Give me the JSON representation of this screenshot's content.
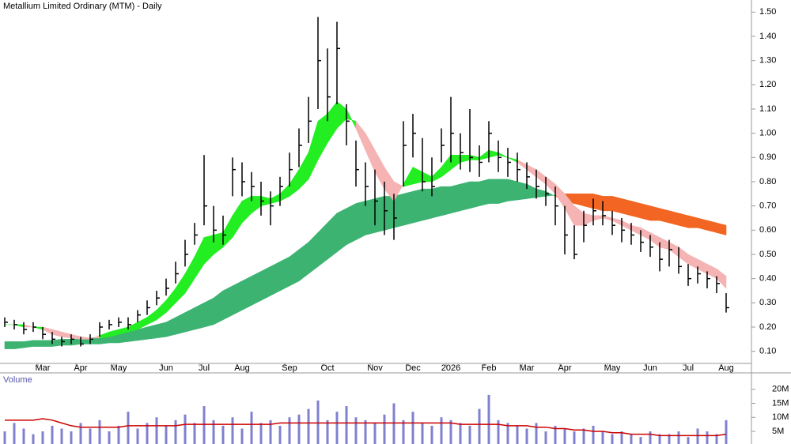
{
  "chart_data": {
    "type": "ohlc",
    "title": "Metallium Limited Ordinary (MTM) - Daily",
    "categories": [
      null,
      null,
      null,
      null,
      "Mar",
      null,
      null,
      null,
      "Apr",
      null,
      null,
      null,
      "May",
      null,
      null,
      null,
      null,
      "Jun",
      null,
      null,
      null,
      "Jul",
      null,
      null,
      null,
      "Aug",
      null,
      null,
      null,
      null,
      "Sep",
      null,
      null,
      null,
      "Oct",
      null,
      null,
      null,
      null,
      "Nov",
      null,
      null,
      null,
      "Dec",
      null,
      null,
      null,
      "2026",
      null,
      null,
      null,
      "Feb",
      null,
      null,
      null,
      "Mar",
      null,
      null,
      null,
      "Apr",
      null,
      null,
      null,
      null,
      "May",
      null,
      null,
      null,
      "Jun",
      null,
      null,
      null,
      "Jul",
      null,
      null,
      null,
      "Aug"
    ],
    "high": [
      0.24,
      0.23,
      0.22,
      0.22,
      0.2,
      0.18,
      0.16,
      0.17,
      0.16,
      0.17,
      0.22,
      0.23,
      0.24,
      0.24,
      0.27,
      0.31,
      0.35,
      0.4,
      0.47,
      0.56,
      0.63,
      0.91,
      0.7,
      0.66,
      0.9,
      0.88,
      0.84,
      0.8,
      0.76,
      0.82,
      0.92,
      1.02,
      1.15,
      1.48,
      1.35,
      1.46,
      1.12,
      0.97,
      0.88,
      0.85,
      0.8,
      0.75,
      1.05,
      1.08,
      0.98,
      0.9,
      1.02,
      1.15,
      1.0,
      1.1,
      0.95,
      1.05,
      0.97,
      0.94,
      0.92,
      0.88,
      0.85,
      0.82,
      0.78,
      0.7,
      0.62,
      0.68,
      0.73,
      0.72,
      0.68,
      0.65,
      0.63,
      0.6,
      0.58,
      0.55,
      0.56,
      0.53,
      0.46,
      0.45,
      0.43,
      0.41,
      0.34
    ],
    "low": [
      0.2,
      0.19,
      0.17,
      0.18,
      0.15,
      0.13,
      0.12,
      0.13,
      0.12,
      0.13,
      0.16,
      0.19,
      0.2,
      0.19,
      0.22,
      0.25,
      0.29,
      0.33,
      0.38,
      0.45,
      0.54,
      0.62,
      0.55,
      0.54,
      0.74,
      0.74,
      0.72,
      0.66,
      0.62,
      0.7,
      0.78,
      0.86,
      0.96,
      1.1,
      1.05,
      1.12,
      0.95,
      0.78,
      0.7,
      0.62,
      0.58,
      0.56,
      0.78,
      0.9,
      0.76,
      0.74,
      0.88,
      0.88,
      0.85,
      0.84,
      0.82,
      0.88,
      0.84,
      0.82,
      0.8,
      0.77,
      0.73,
      0.7,
      0.62,
      0.5,
      0.48,
      0.55,
      0.62,
      0.62,
      0.58,
      0.55,
      0.54,
      0.51,
      0.49,
      0.43,
      0.45,
      0.42,
      0.37,
      0.38,
      0.36,
      0.34,
      0.26
    ],
    "close": [
      0.22,
      0.21,
      0.19,
      0.2,
      0.17,
      0.15,
      0.14,
      0.15,
      0.13,
      0.15,
      0.2,
      0.21,
      0.22,
      0.21,
      0.25,
      0.28,
      0.32,
      0.36,
      0.42,
      0.5,
      0.58,
      0.7,
      0.6,
      0.58,
      0.85,
      0.8,
      0.78,
      0.72,
      0.7,
      0.78,
      0.85,
      0.95,
      1.05,
      1.3,
      1.15,
      1.35,
      1.05,
      0.85,
      0.78,
      0.72,
      0.68,
      0.65,
      0.95,
      1.0,
      0.8,
      0.78,
      0.95,
      1.0,
      0.92,
      0.9,
      0.88,
      1.0,
      0.9,
      0.88,
      0.85,
      0.82,
      0.78,
      0.75,
      0.7,
      0.58,
      0.5,
      0.62,
      0.68,
      0.66,
      0.62,
      0.6,
      0.58,
      0.55,
      0.53,
      0.48,
      0.52,
      0.45,
      0.4,
      0.42,
      0.4,
      0.38,
      0.28
    ],
    "color": "#000000",
    "ylim": [
      0.05,
      1.55
    ],
    "yticks": [
      {
        "value": 0.1,
        "label": "0.10"
      },
      {
        "value": 0.2,
        "label": "0.20"
      },
      {
        "value": 0.3,
        "label": "0.30"
      },
      {
        "value": 0.4,
        "label": "0.40"
      },
      {
        "value": 0.5,
        "label": "0.50"
      },
      {
        "value": 0.6,
        "label": "0.60"
      },
      {
        "value": 0.7,
        "label": "0.70"
      },
      {
        "value": 0.8,
        "label": "0.80"
      },
      {
        "value": 0.9,
        "label": "0.90"
      },
      {
        "value": 1.0,
        "label": "1.00"
      },
      {
        "value": 1.1,
        "label": "1.10"
      },
      {
        "value": 1.2,
        "label": "1.20"
      },
      {
        "value": 1.3,
        "label": "1.30"
      },
      {
        "value": 1.4,
        "label": "1.40"
      },
      {
        "value": 1.5,
        "label": "1.50"
      }
    ],
    "ribbons": [
      {
        "fast": [
          0.14,
          0.14,
          0.14,
          0.145,
          0.145,
          0.145,
          0.15,
          0.15,
          0.15,
          0.155,
          0.16,
          0.165,
          0.17,
          0.18,
          0.19,
          0.2,
          0.21,
          0.22,
          0.24,
          0.26,
          0.28,
          0.3,
          0.32,
          0.35,
          0.37,
          0.39,
          0.41,
          0.43,
          0.45,
          0.47,
          0.49,
          0.52,
          0.55,
          0.59,
          0.63,
          0.67,
          0.69,
          0.71,
          0.72,
          0.73,
          0.74,
          0.74,
          0.75,
          0.76,
          0.77,
          0.77,
          0.78,
          0.78,
          0.79,
          0.8,
          0.8,
          0.81,
          0.81,
          0.81,
          0.8,
          0.79,
          0.77,
          0.76,
          0.74,
          0.72,
          0.71,
          0.7,
          0.69,
          0.68,
          0.68,
          0.67,
          0.66,
          0.65,
          0.64,
          0.64,
          0.63,
          0.62,
          0.61,
          0.61,
          0.6,
          0.59,
          0.58
        ],
        "slow": [
          0.11,
          0.11,
          0.115,
          0.12,
          0.12,
          0.12,
          0.125,
          0.125,
          0.13,
          0.13,
          0.13,
          0.135,
          0.135,
          0.14,
          0.145,
          0.15,
          0.155,
          0.16,
          0.17,
          0.18,
          0.19,
          0.2,
          0.21,
          0.23,
          0.25,
          0.27,
          0.29,
          0.31,
          0.33,
          0.35,
          0.37,
          0.39,
          0.42,
          0.45,
          0.48,
          0.51,
          0.54,
          0.56,
          0.58,
          0.59,
          0.6,
          0.61,
          0.62,
          0.63,
          0.64,
          0.65,
          0.66,
          0.67,
          0.68,
          0.69,
          0.7,
          0.71,
          0.71,
          0.72,
          0.725,
          0.73,
          0.735,
          0.74,
          0.745,
          0.75,
          0.75,
          0.75,
          0.75,
          0.74,
          0.74,
          0.73,
          0.72,
          0.71,
          0.7,
          0.69,
          0.68,
          0.67,
          0.66,
          0.65,
          0.64,
          0.63,
          0.62
        ],
        "up_color": "#3cb371",
        "down_color": "#f26522"
      },
      {
        "fast": [
          0.21,
          0.21,
          0.2,
          0.2,
          0.19,
          0.17,
          0.16,
          0.155,
          0.15,
          0.15,
          0.165,
          0.18,
          0.19,
          0.2,
          0.22,
          0.24,
          0.27,
          0.31,
          0.36,
          0.42,
          0.49,
          0.57,
          0.58,
          0.59,
          0.66,
          0.72,
          0.74,
          0.74,
          0.73,
          0.75,
          0.79,
          0.85,
          0.92,
          1.05,
          1.08,
          1.13,
          1.1,
          1.02,
          0.93,
          0.84,
          0.77,
          0.72,
          0.79,
          0.86,
          0.84,
          0.82,
          0.86,
          0.91,
          0.91,
          0.91,
          0.9,
          0.93,
          0.92,
          0.9,
          0.88,
          0.85,
          0.82,
          0.79,
          0.75,
          0.69,
          0.62,
          0.62,
          0.64,
          0.65,
          0.64,
          0.62,
          0.6,
          0.58,
          0.56,
          0.53,
          0.52,
          0.49,
          0.46,
          0.44,
          0.42,
          0.4,
          0.36
        ],
        "slow": [
          0.21,
          0.21,
          0.21,
          0.2,
          0.2,
          0.19,
          0.18,
          0.17,
          0.16,
          0.155,
          0.155,
          0.16,
          0.17,
          0.18,
          0.19,
          0.21,
          0.23,
          0.26,
          0.3,
          0.34,
          0.4,
          0.46,
          0.5,
          0.53,
          0.57,
          0.63,
          0.67,
          0.7,
          0.71,
          0.72,
          0.74,
          0.77,
          0.81,
          0.89,
          0.96,
          1.02,
          1.06,
          1.05,
          1.0,
          0.93,
          0.86,
          0.8,
          0.78,
          0.79,
          0.8,
          0.8,
          0.82,
          0.85,
          0.88,
          0.89,
          0.89,
          0.9,
          0.91,
          0.9,
          0.89,
          0.87,
          0.85,
          0.82,
          0.79,
          0.75,
          0.7,
          0.67,
          0.66,
          0.66,
          0.65,
          0.64,
          0.62,
          0.61,
          0.59,
          0.57,
          0.55,
          0.53,
          0.5,
          0.48,
          0.46,
          0.44,
          0.41
        ],
        "up_color": "#22ee22",
        "down_color": "#f5b3b3"
      }
    ],
    "volume": {
      "title": "Volume",
      "color": "#8080d0",
      "ma_color": "#cc0000",
      "values": [
        5,
        8,
        6,
        4,
        5,
        7,
        6,
        5,
        8,
        6,
        9,
        5,
        7,
        12,
        6,
        8,
        10,
        7,
        9,
        11,
        8,
        14,
        9,
        7,
        10,
        6,
        12,
        8,
        9,
        7,
        10,
        11,
        13,
        16,
        9,
        12,
        14,
        10,
        9,
        8,
        11,
        15,
        9,
        12,
        8,
        7,
        10,
        9,
        8,
        7,
        13,
        18,
        9,
        8,
        7,
        6,
        8,
        5,
        7,
        6,
        5,
        6,
        7,
        5,
        4,
        5,
        4,
        3,
        5,
        4,
        4,
        5,
        3,
        6,
        5,
        4,
        9
      ],
      "ma": [
        9,
        9,
        9,
        9,
        9.5,
        9,
        8,
        7,
        6.5,
        6.5,
        6.5,
        6.5,
        6.5,
        7,
        7,
        7,
        7,
        7,
        7,
        7.5,
        7.5,
        7.5,
        7.5,
        7.5,
        7.5,
        7.5,
        7.5,
        7.5,
        7.5,
        8,
        8,
        8,
        8,
        8,
        8,
        8,
        8,
        8,
        8,
        8,
        8,
        8,
        8,
        8,
        8,
        8,
        8,
        8,
        7.5,
        7.5,
        7.5,
        7.5,
        7.5,
        7,
        7,
        7,
        6.5,
        6.5,
        6,
        6,
        5.5,
        5.5,
        5,
        5,
        4.5,
        4.5,
        4,
        4,
        4,
        3.5,
        3.5,
        3.5,
        3.5,
        3.5,
        3.5,
        3.5,
        4
      ],
      "ylim": [
        0.5,
        25
      ],
      "yticks": [
        {
          "value": 5,
          "label": "5M"
        },
        {
          "value": 10,
          "label": "10M"
        },
        {
          "value": 15,
          "label": "15M"
        },
        {
          "value": 20,
          "label": "20M"
        }
      ]
    }
  }
}
